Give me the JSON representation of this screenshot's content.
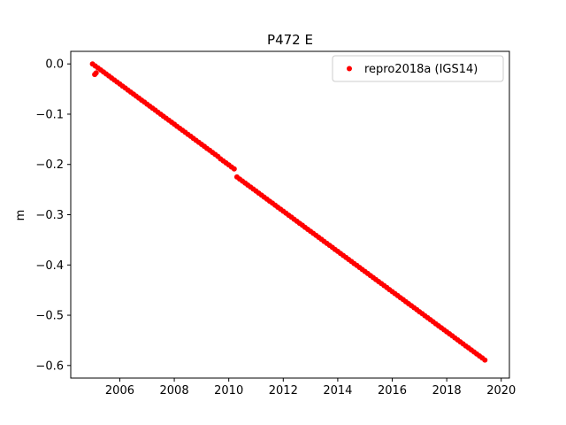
{
  "figure": {
    "title": "P472 E",
    "background_color": "#ffffff",
    "axes_edge_color": "#000000"
  },
  "legend": {
    "items": [
      {
        "label": "repro2018a (IGS14)",
        "color": "#ff0000",
        "marker": "dot"
      }
    ],
    "border_color": "#cccccc",
    "position": "upper right"
  },
  "chart_data": {
    "type": "scatter",
    "title": "P472 E",
    "xlabel": "",
    "ylabel": "m",
    "xlim": [
      2004.2,
      2020.3
    ],
    "ylim": [
      -0.625,
      0.025
    ],
    "xticks": [
      2006,
      2008,
      2010,
      2012,
      2014,
      2016,
      2018,
      2020
    ],
    "yticks": [
      0.0,
      -0.1,
      -0.2,
      -0.3,
      -0.4,
      -0.5,
      -0.6
    ],
    "grid": false,
    "legend_position": "upper right",
    "series": [
      {
        "name": "repro2018a (IGS14)",
        "color": "#ff0000",
        "marker_radius": 3,
        "x0": 2005.0,
        "dx": 0.1,
        "y": [
          0.0,
          -0.004,
          -0.008,
          -0.012,
          -0.016,
          -0.02,
          -0.024,
          -0.028,
          -0.032,
          -0.036,
          -0.04,
          -0.044,
          -0.048,
          -0.052,
          -0.056,
          -0.06,
          -0.064,
          -0.068,
          -0.072,
          -0.076,
          -0.08,
          -0.084,
          -0.088,
          -0.092,
          -0.096,
          -0.1,
          -0.104,
          -0.108,
          -0.112,
          -0.116,
          -0.12,
          -0.124,
          -0.128,
          -0.132,
          -0.136,
          -0.14,
          -0.144,
          -0.148,
          -0.152,
          -0.156,
          -0.16,
          -0.164,
          -0.168,
          -0.172,
          -0.176,
          -0.18,
          -0.184,
          -0.189,
          -0.193,
          -0.197,
          -0.201,
          -0.205,
          -0.209,
          -0.225,
          -0.229,
          -0.233,
          -0.237,
          -0.241,
          -0.245,
          -0.249,
          -0.253,
          -0.257,
          -0.261,
          -0.265,
          -0.269,
          -0.273,
          -0.277,
          -0.281,
          -0.285,
          -0.289,
          -0.293,
          -0.297,
          -0.301,
          -0.305,
          -0.309,
          -0.313,
          -0.317,
          -0.321,
          -0.325,
          -0.329,
          -0.333,
          -0.337,
          -0.341,
          -0.345,
          -0.349,
          -0.353,
          -0.357,
          -0.361,
          -0.365,
          -0.369,
          -0.373,
          -0.377,
          -0.381,
          -0.385,
          -0.389,
          -0.393,
          -0.397,
          -0.401,
          -0.405,
          -0.409,
          -0.413,
          -0.417,
          -0.421,
          -0.425,
          -0.429,
          -0.433,
          -0.437,
          -0.441,
          -0.445,
          -0.449,
          -0.453,
          -0.457,
          -0.461,
          -0.465,
          -0.469,
          -0.473,
          -0.477,
          -0.481,
          -0.485,
          -0.489,
          -0.493,
          -0.497,
          -0.501,
          -0.505,
          -0.509,
          -0.513,
          -0.517,
          -0.521,
          -0.525,
          -0.529,
          -0.533,
          -0.537,
          -0.541,
          -0.545,
          -0.549,
          -0.553,
          -0.557,
          -0.561,
          -0.565,
          -0.569,
          -0.573,
          -0.577,
          -0.581,
          -0.585,
          -0.589
        ],
        "outliers": [
          [
            2005.08,
            -0.021
          ],
          [
            2005.13,
            -0.018
          ]
        ],
        "notes": "approximately linear trend ~-0.040 m/yr with small offset step near 2010.3"
      }
    ]
  }
}
